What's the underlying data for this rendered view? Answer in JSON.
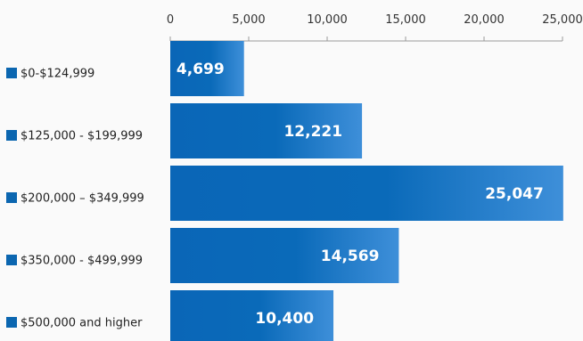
{
  "chart_data": {
    "type": "bar",
    "orientation": "horizontal",
    "categories": [
      "$0-$124,999",
      "$125,000 - $199,999",
      "$200,000 – $349,999",
      "$350,000 - $499,999",
      "$500,000 and higher"
    ],
    "values": [
      4699,
      12221,
      25047,
      14569,
      10400
    ],
    "data_labels": [
      "4,699",
      "12,221",
      "25,047",
      "14,569",
      "10,400"
    ],
    "xlim": [
      0,
      25000
    ],
    "x_ticks": [
      0,
      5000,
      10000,
      15000,
      20000,
      25000
    ],
    "x_tick_labels": [
      "0",
      "5,000",
      "10,000",
      "15,000",
      "20,000",
      "25,000"
    ],
    "x_axis_position": "top",
    "grid": false,
    "legend": "inline-left",
    "colors": {
      "bar_dark": "#0a66b7",
      "bar_light": "#3e8fd9",
      "marker": "#0b66b0",
      "axis": "#999999"
    }
  }
}
